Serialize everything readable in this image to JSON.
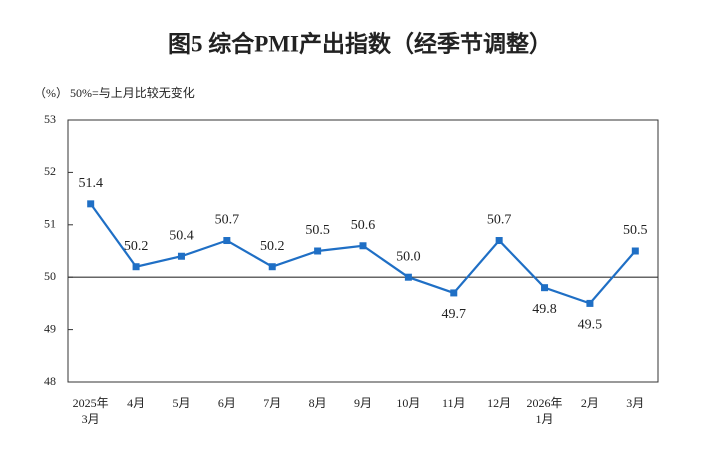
{
  "chart_data": {
    "type": "line",
    "title": "图5  综合PMI产出指数（经季节调整）",
    "unit_label": "（%）",
    "annotation": "50%=与上月比较无变化",
    "categories": [
      "2025年\n3月",
      "4月",
      "5月",
      "6月",
      "7月",
      "8月",
      "9月",
      "10月",
      "11月",
      "12月",
      "2026年\n1月",
      "2月",
      "3月"
    ],
    "values": [
      51.4,
      50.2,
      50.4,
      50.7,
      50.2,
      50.5,
      50.6,
      50.0,
      49.7,
      50.7,
      49.8,
      49.5,
      50.5
    ],
    "value_labels": [
      "51.4",
      "50.2",
      "50.4",
      "50.7",
      "50.2",
      "50.5",
      "50.6",
      "50.0",
      "49.7",
      "50.7",
      "49.8",
      "49.5",
      "50.5"
    ],
    "color": "#1f6fc5",
    "ylim": [
      48,
      53
    ],
    "yticks": [
      48,
      49,
      50,
      51,
      52,
      53
    ],
    "reference_line": 50
  }
}
